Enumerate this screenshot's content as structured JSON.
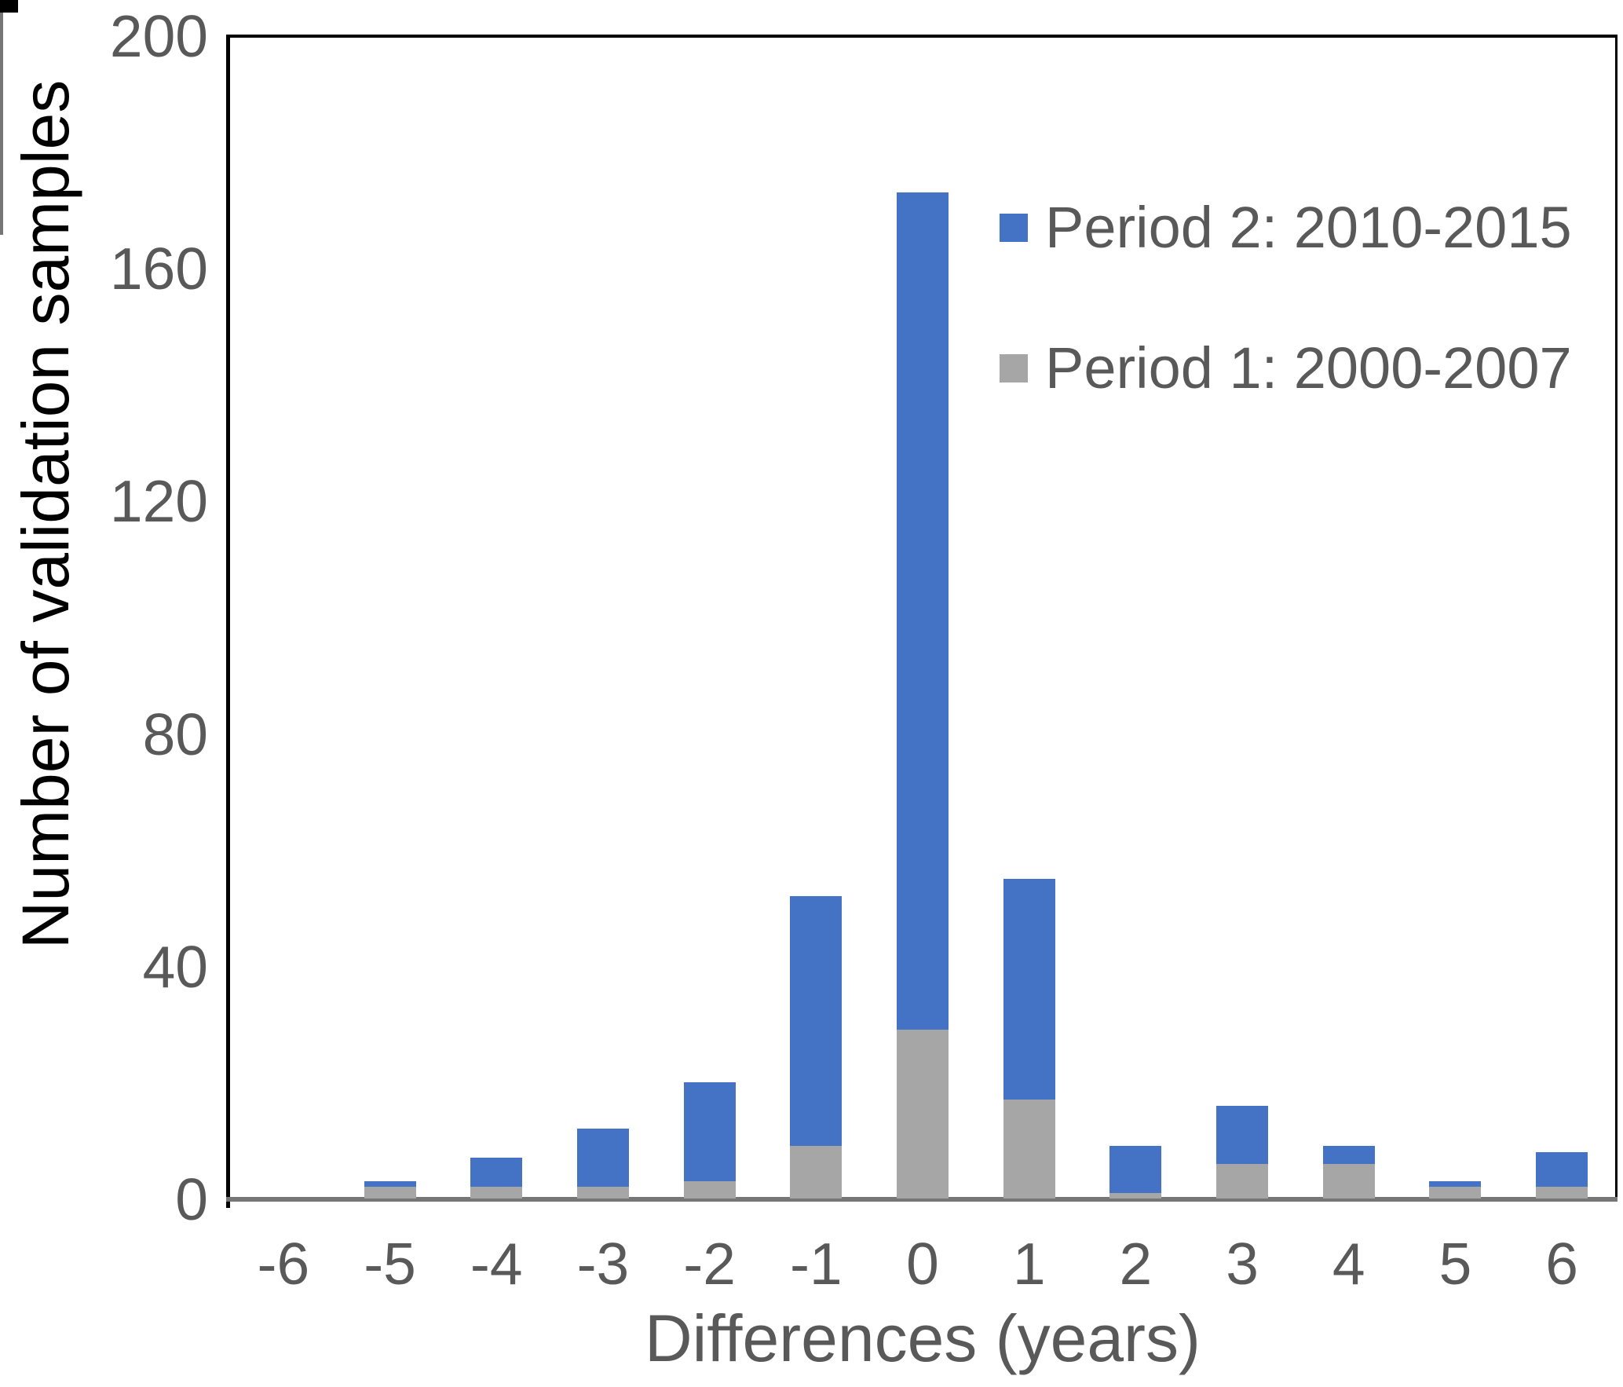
{
  "chart_data": {
    "type": "bar",
    "stacked": true,
    "title": "",
    "xlabel": "Differences (years)",
    "ylabel": "Number of validation samples",
    "categories": [
      "-6",
      "-5",
      "-4",
      "-3",
      "-2",
      "-1",
      "0",
      "1",
      "2",
      "3",
      "4",
      "5",
      "6"
    ],
    "series": [
      {
        "name": "Period 1: 2000-2007",
        "color": "#A6A6A6",
        "values": [
          0,
          2,
          2,
          2,
          3,
          9,
          29,
          17,
          1,
          6,
          6,
          2,
          2
        ]
      },
      {
        "name": "Period 2: 2010-2015",
        "color": "#4472C4",
        "values": [
          0,
          1,
          5,
          10,
          17,
          43,
          144,
          38,
          8,
          10,
          3,
          1,
          6
        ]
      }
    ],
    "stack_totals": [
      0,
      3,
      7,
      12,
      20,
      52,
      173,
      55,
      9,
      16,
      9,
      3,
      8
    ],
    "legend": [
      {
        "label": "Period 2: 2010-2015",
        "color": "#4472C4"
      },
      {
        "label": "Period 1: 2000-2007",
        "color": "#A6A6A6"
      }
    ],
    "legend_position": "upper-right-inside",
    "ylim": [
      0,
      200
    ],
    "yticks": [
      0,
      40,
      80,
      120,
      160,
      200
    ],
    "grid": false,
    "axis_colors": {
      "y_axis": "#000000",
      "x_axis": "#767676",
      "tick_text": "#595959"
    }
  }
}
